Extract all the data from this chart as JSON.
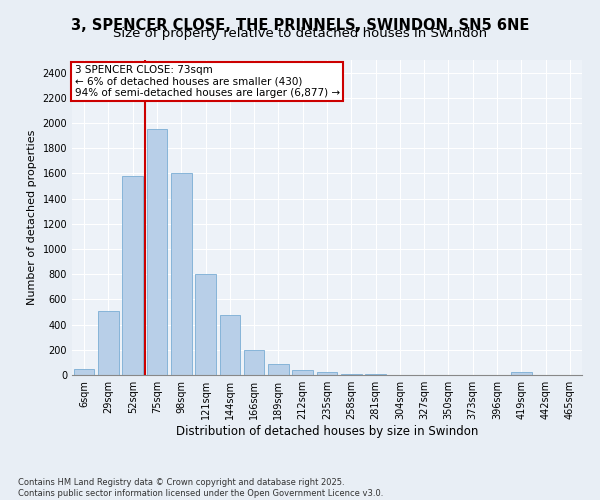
{
  "title": "3, SPENCER CLOSE, THE PRINNELS, SWINDON, SN5 6NE",
  "subtitle": "Size of property relative to detached houses in Swindon",
  "xlabel": "Distribution of detached houses by size in Swindon",
  "ylabel": "Number of detached properties",
  "categories": [
    "6sqm",
    "29sqm",
    "52sqm",
    "75sqm",
    "98sqm",
    "121sqm",
    "144sqm",
    "166sqm",
    "189sqm",
    "212sqm",
    "235sqm",
    "258sqm",
    "281sqm",
    "304sqm",
    "327sqm",
    "350sqm",
    "373sqm",
    "396sqm",
    "419sqm",
    "442sqm",
    "465sqm"
  ],
  "values": [
    50,
    510,
    1580,
    1950,
    1600,
    800,
    480,
    195,
    90,
    40,
    20,
    10,
    5,
    3,
    2,
    1,
    0,
    0,
    20,
    0,
    0
  ],
  "bar_color": "#b8cfe8",
  "bar_edge_color": "#7aadd4",
  "vline_color": "#cc0000",
  "vline_x_index": 3,
  "annotation_line1": "3 SPENCER CLOSE: 73sqm",
  "annotation_line2": "← 6% of detached houses are smaller (430)",
  "annotation_line3": "94% of semi-detached houses are larger (6,877) →",
  "annotation_box_facecolor": "#ffffff",
  "annotation_box_edgecolor": "#cc0000",
  "ylim": [
    0,
    2500
  ],
  "yticks": [
    0,
    200,
    400,
    600,
    800,
    1000,
    1200,
    1400,
    1600,
    1800,
    2000,
    2200,
    2400
  ],
  "footnote": "Contains HM Land Registry data © Crown copyright and database right 2025.\nContains public sector information licensed under the Open Government Licence v3.0.",
  "bg_color": "#e8eef5",
  "plot_bg_color": "#edf2f8",
  "grid_color": "#ffffff",
  "title_fontsize": 10.5,
  "subtitle_fontsize": 9.5,
  "ylabel_fontsize": 8,
  "xlabel_fontsize": 8.5,
  "tick_fontsize": 7,
  "annotation_fontsize": 7.5,
  "footnote_fontsize": 6
}
